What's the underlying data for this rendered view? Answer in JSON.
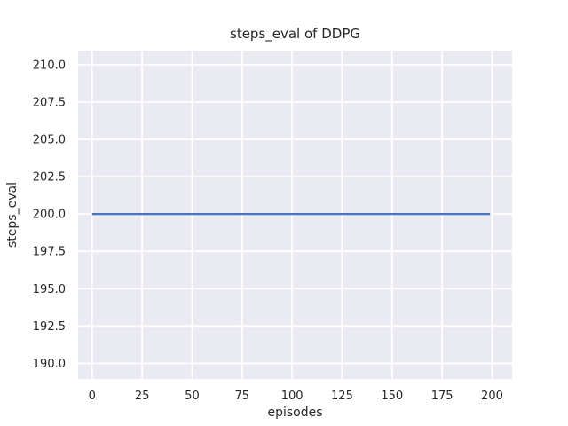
{
  "figure": {
    "background": "#ffffff"
  },
  "chart_data": {
    "type": "line",
    "title": "steps_eval of DDPG",
    "xlabel": "episodes",
    "ylabel": "steps_eval",
    "xlim": [
      -7,
      210
    ],
    "ylim": [
      188.95,
      210.95
    ],
    "xticks": [
      0,
      25,
      50,
      75,
      100,
      125,
      150,
      175,
      200
    ],
    "xtick_labels": [
      "0",
      "25",
      "50",
      "75",
      "100",
      "125",
      "150",
      "175",
      "200"
    ],
    "yticks": [
      190.0,
      192.5,
      195.0,
      197.5,
      200.0,
      202.5,
      205.0,
      207.5,
      210.0
    ],
    "ytick_labels": [
      "190.0",
      "192.5",
      "195.0",
      "197.5",
      "200.0",
      "202.5",
      "205.0",
      "207.5",
      "210.0"
    ],
    "grid": true,
    "legend": null,
    "style": "seaborn-darkgrid",
    "plot_bg": "#eaeaf2",
    "grid_color": "#ffffff",
    "text_color": "#262626",
    "series": [
      {
        "name": "steps_eval",
        "color": "#4c72b0",
        "x": [
          0,
          199
        ],
        "y": [
          200,
          200
        ]
      }
    ]
  }
}
